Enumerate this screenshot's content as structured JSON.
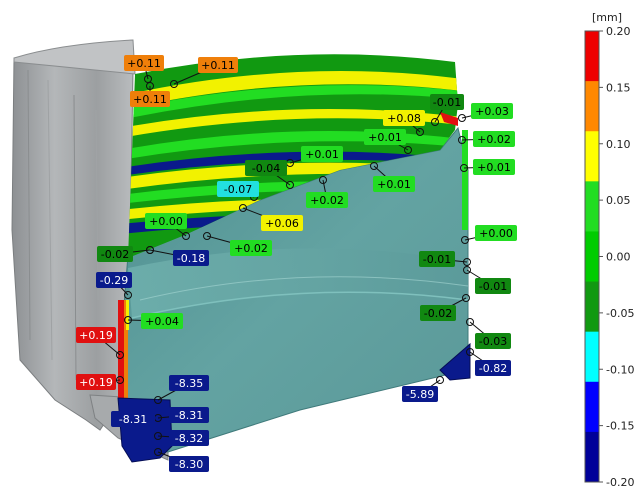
{
  "colorbar": {
    "unit": "[mm]",
    "ticks": [
      "0.20",
      "0.15",
      "0.10",
      "0.05",
      "0.00",
      "-0.05",
      "-0.10",
      "-0.15",
      "-0.20"
    ],
    "bands": [
      "#ee0000",
      "#ff8800",
      "#ffff00",
      "#22dd22",
      "#00cc00",
      "#119911",
      "#00ffff",
      "#0000ff",
      "#000099"
    ]
  },
  "colors": {
    "part_gray": "#a3a6a8",
    "part_teal": "#5c9c9c",
    "dark_blue": "#0a1a8c",
    "green": "#11cc11",
    "dark_green": "#118811",
    "yellow": "#f2f200",
    "orange": "#ef7f0a",
    "red": "#e01010",
    "cyan": "#22e0e0"
  },
  "callouts": [
    {
      "text": "+0.11",
      "fill": "#ef7f0a",
      "fg": "#000000"
    },
    {
      "text": "+0.11",
      "fill": "#ef7f0a",
      "fg": "#000000"
    },
    {
      "text": "+0.11",
      "fill": "#ef7f0a",
      "fg": "#000000"
    },
    {
      "text": "+0.08",
      "fill": "#f2f200",
      "fg": "#000000"
    },
    {
      "text": "-0.01",
      "fill": "#118811",
      "fg": "#000000"
    },
    {
      "text": "+0.03",
      "fill": "#22dd22",
      "fg": "#000000"
    },
    {
      "text": "+0.02",
      "fill": "#22dd22",
      "fg": "#000000"
    },
    {
      "text": "+0.01",
      "fill": "#22dd22",
      "fg": "#000000"
    },
    {
      "text": "+0.01",
      "fill": "#22dd22",
      "fg": "#000000"
    },
    {
      "text": "+0.01",
      "fill": "#22dd22",
      "fg": "#000000"
    },
    {
      "text": "+0.01",
      "fill": "#22dd22",
      "fg": "#000000"
    },
    {
      "text": "-0.04",
      "fill": "#118811",
      "fg": "#000000"
    },
    {
      "text": "+0.02",
      "fill": "#22dd22",
      "fg": "#000000"
    },
    {
      "text": "-0.07",
      "fill": "#22e0e0",
      "fg": "#000000"
    },
    {
      "text": "+0.00",
      "fill": "#22dd22",
      "fg": "#000000"
    },
    {
      "text": "+0.06",
      "fill": "#f2f200",
      "fg": "#000000"
    },
    {
      "text": "+0.02",
      "fill": "#22dd22",
      "fg": "#000000"
    },
    {
      "text": "+0.00",
      "fill": "#22dd22",
      "fg": "#000000"
    },
    {
      "text": "-0.02",
      "fill": "#118811",
      "fg": "#000000"
    },
    {
      "text": "-0.18",
      "fill": "#0a1a8c",
      "fg": "#ffffff"
    },
    {
      "text": "-0.29",
      "fill": "#0a1a8c",
      "fg": "#ffffff"
    },
    {
      "text": "-0.01",
      "fill": "#118811",
      "fg": "#000000"
    },
    {
      "text": "-0.01",
      "fill": "#118811",
      "fg": "#000000"
    },
    {
      "text": "+0.04",
      "fill": "#22dd22",
      "fg": "#000000"
    },
    {
      "text": "-0.02",
      "fill": "#118811",
      "fg": "#000000"
    },
    {
      "text": "+0.19",
      "fill": "#e01010",
      "fg": "#ffffff"
    },
    {
      "text": "-0.03",
      "fill": "#118811",
      "fg": "#000000"
    },
    {
      "text": "-0.82",
      "fill": "#0a1a8c",
      "fg": "#ffffff"
    },
    {
      "text": "+0.19",
      "fill": "#e01010",
      "fg": "#ffffff"
    },
    {
      "text": "-8.35",
      "fill": "#0a1a8c",
      "fg": "#ffffff"
    },
    {
      "text": "-5.89",
      "fill": "#0a1a8c",
      "fg": "#ffffff"
    },
    {
      "text": "-8.31",
      "fill": "#0a1a8c",
      "fg": "#ffffff"
    },
    {
      "text": "-8.31",
      "fill": "#0a1a8c",
      "fg": "#ffffff"
    },
    {
      "text": "-8.32",
      "fill": "#0a1a8c",
      "fg": "#ffffff"
    },
    {
      "text": "-8.30",
      "fill": "#0a1a8c",
      "fg": "#ffffff"
    }
  ]
}
